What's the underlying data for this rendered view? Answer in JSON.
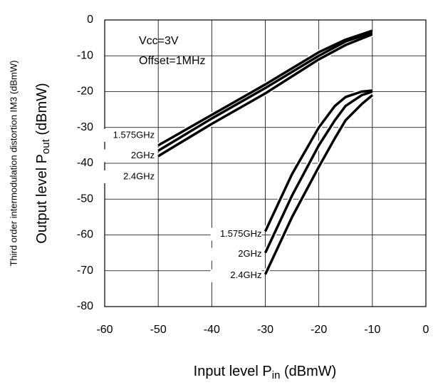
{
  "chart_data": {
    "type": "line",
    "y_label_outer": "Third order intermodulation distortion IM3 (dBmW)",
    "y_label": [
      "Output level P",
      "out",
      " (dBmW)"
    ],
    "x_label": [
      "Input level P",
      "in",
      " (dBmW)"
    ],
    "annotations": [
      "Vcc=3V",
      "Offset=1MHz"
    ],
    "xlim": [
      -60,
      0
    ],
    "xticks": [
      -60,
      -50,
      -40,
      -30,
      -20,
      -10,
      0
    ],
    "ylim": [
      -80,
      0
    ],
    "yticks": [
      -80,
      -70,
      -60,
      -50,
      -40,
      -30,
      -20,
      -10,
      0
    ],
    "grid": true,
    "series": [
      {
        "name": "1.575GHz",
        "color": "#000000",
        "x": [
          -50,
          -40,
          -30,
          -20,
          -15,
          -10
        ],
        "values": [
          -35,
          -26.5,
          -18,
          -9,
          -5.5,
          -3
        ]
      },
      {
        "name": "2GHz",
        "color": "#000000",
        "x": [
          -50,
          -40,
          -30,
          -20,
          -15,
          -10
        ],
        "values": [
          -36.5,
          -27.5,
          -19,
          -10,
          -6,
          -3.5
        ]
      },
      {
        "name": "2.4GHz",
        "color": "#000000",
        "x": [
          -50,
          -40,
          -30,
          -20,
          -15,
          -10
        ],
        "values": [
          -38,
          -29,
          -20.5,
          -11,
          -7,
          -4
        ]
      },
      {
        "name": "1.575GHz",
        "color": "#000000",
        "x": [
          -30,
          -25,
          -20,
          -17,
          -15,
          -12,
          -10
        ],
        "values": [
          -59,
          -43,
          -30,
          -24,
          -21.5,
          -20,
          -19.7
        ]
      },
      {
        "name": "2GHz",
        "color": "#000000",
        "x": [
          -30,
          -25,
          -20,
          -17,
          -15,
          -12,
          -10
        ],
        "values": [
          -65,
          -49,
          -35,
          -28,
          -24,
          -21,
          -20
        ]
      },
      {
        "name": "2.4GHz",
        "color": "#000000",
        "x": [
          -30,
          -25,
          -20,
          -17,
          -15,
          -12,
          -10
        ],
        "values": [
          -71,
          -55,
          -41,
          -33,
          -28,
          -23.5,
          -21
        ]
      }
    ]
  }
}
